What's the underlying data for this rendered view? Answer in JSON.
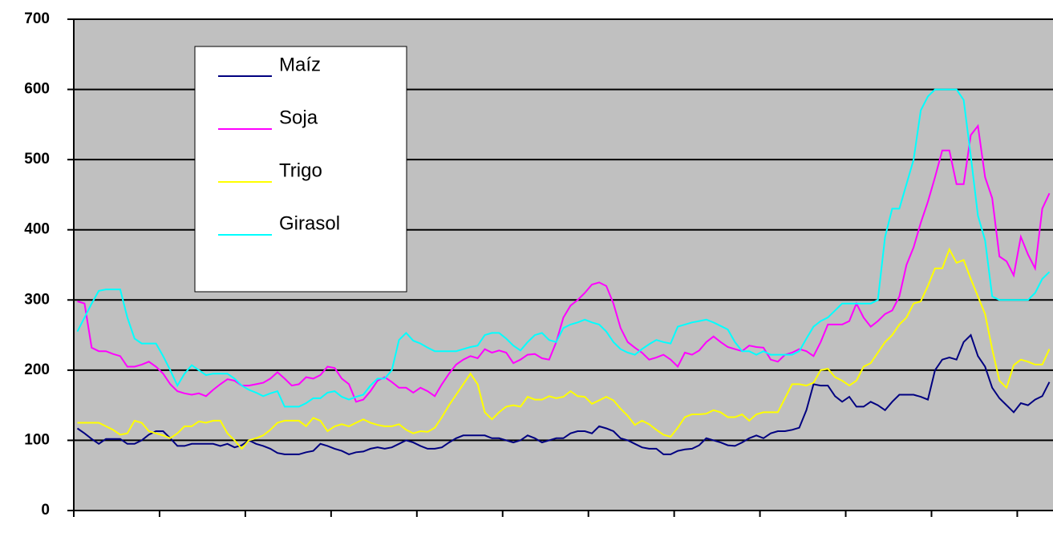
{
  "chart_data": {
    "type": "line",
    "categories": [
      null,
      null,
      null,
      null,
      null,
      null,
      null,
      null,
      null,
      null,
      null,
      null,
      null,
      null,
      null,
      null,
      null,
      null,
      null,
      null,
      null,
      null,
      null,
      null,
      null,
      null,
      null,
      null,
      null,
      null,
      null,
      null,
      null,
      null,
      null,
      null,
      null,
      null,
      null,
      null,
      null,
      null,
      null,
      null,
      null,
      null,
      null,
      null,
      null,
      null,
      null,
      null,
      null,
      null,
      null,
      null,
      null,
      null,
      null,
      null,
      null,
      null,
      null,
      null,
      null,
      null,
      null,
      null,
      null,
      null,
      null,
      null,
      null,
      null,
      null,
      null,
      null,
      null,
      null,
      null,
      null,
      null,
      null,
      null,
      null,
      null,
      null,
      null,
      null,
      null,
      null,
      null,
      null,
      null,
      null,
      null,
      null,
      null,
      null,
      null,
      null,
      null,
      null,
      null,
      null,
      null,
      null,
      null,
      null,
      null,
      null,
      null,
      null,
      null,
      null,
      null,
      null,
      null,
      null,
      null,
      null,
      null,
      null,
      null,
      null,
      null,
      null,
      null,
      null,
      null,
      null,
      null,
      null,
      null,
      null,
      null,
      null
    ],
    "series": [
      {
        "name": "Maíz",
        "color": "#000080",
        "values": [
          117,
          110,
          102,
          95,
          102,
          102,
          102,
          95,
          95,
          100,
          108,
          113,
          113,
          103,
          92,
          92,
          95,
          95,
          95,
          95,
          92,
          95,
          90,
          93,
          100,
          95,
          92,
          88,
          82,
          80,
          80,
          80,
          83,
          85,
          95,
          92,
          88,
          85,
          80,
          83,
          84,
          88,
          90,
          88,
          90,
          95,
          100,
          97,
          92,
          88,
          88,
          90,
          97,
          103,
          107,
          107,
          107,
          107,
          103,
          103,
          100,
          97,
          100,
          107,
          103,
          97,
          100,
          103,
          103,
          110,
          113,
          113,
          110,
          120,
          117,
          113,
          103,
          100,
          95,
          90,
          88,
          88,
          80,
          80,
          85,
          87,
          88,
          93,
          103,
          100,
          97,
          93,
          92,
          97,
          103,
          107,
          103,
          110,
          113,
          113,
          115,
          118,
          143,
          180,
          178,
          178,
          163,
          155,
          162,
          148,
          148,
          155,
          150,
          143,
          155,
          165,
          165,
          165,
          162,
          158,
          200,
          215,
          218,
          215,
          240,
          250,
          220,
          205,
          175,
          160,
          150,
          140,
          153,
          150,
          158,
          163,
          183
        ]
      },
      {
        "name": "Soja",
        "color": "#ff00ff",
        "values": [
          298,
          295,
          232,
          227,
          227,
          223,
          220,
          205,
          205,
          208,
          212,
          205,
          195,
          180,
          170,
          167,
          165,
          167,
          163,
          172,
          180,
          187,
          185,
          178,
          178,
          180,
          182,
          188,
          197,
          188,
          178,
          180,
          190,
          188,
          193,
          205,
          203,
          188,
          180,
          155,
          158,
          170,
          185,
          190,
          183,
          175,
          175,
          168,
          175,
          170,
          163,
          180,
          195,
          208,
          215,
          220,
          217,
          230,
          225,
          228,
          225,
          210,
          215,
          222,
          223,
          217,
          215,
          240,
          275,
          292,
          300,
          310,
          322,
          325,
          320,
          295,
          260,
          240,
          232,
          225,
          215,
          218,
          222,
          215,
          205,
          225,
          222,
          228,
          240,
          248,
          240,
          233,
          230,
          227,
          235,
          233,
          232,
          215,
          212,
          222,
          225,
          230,
          227,
          220,
          240,
          265,
          265,
          265,
          270,
          295,
          275,
          262,
          270,
          280,
          285,
          305,
          350,
          375,
          410,
          440,
          475,
          513,
          513,
          465,
          465,
          535,
          548,
          475,
          445,
          362,
          355,
          335,
          390,
          365,
          345,
          430,
          452
        ]
      },
      {
        "name": "Trigo",
        "color": "#ffff00",
        "values": [
          125,
          125,
          125,
          125,
          120,
          115,
          108,
          110,
          128,
          125,
          113,
          110,
          107,
          103,
          110,
          120,
          120,
          127,
          125,
          128,
          128,
          110,
          100,
          88,
          100,
          103,
          107,
          115,
          125,
          128,
          128,
          128,
          120,
          132,
          128,
          113,
          120,
          123,
          120,
          125,
          130,
          125,
          122,
          120,
          120,
          123,
          115,
          110,
          113,
          112,
          118,
          133,
          150,
          165,
          180,
          195,
          180,
          140,
          130,
          140,
          148,
          150,
          148,
          162,
          158,
          158,
          163,
          160,
          162,
          170,
          163,
          162,
          152,
          157,
          162,
          157,
          145,
          135,
          122,
          128,
          123,
          115,
          108,
          105,
          118,
          133,
          137,
          137,
          138,
          143,
          140,
          133,
          133,
          137,
          128,
          137,
          140,
          140,
          140,
          160,
          180,
          180,
          178,
          182,
          200,
          202,
          190,
          185,
          178,
          185,
          205,
          210,
          225,
          240,
          250,
          265,
          275,
          295,
          298,
          320,
          345,
          345,
          372,
          353,
          357,
          330,
          305,
          280,
          230,
          185,
          175,
          207,
          215,
          212,
          208,
          208,
          230
        ]
      },
      {
        "name": "Girasol",
        "color": "#00ffff",
        "values": [
          255,
          275,
          295,
          313,
          315,
          315,
          315,
          275,
          245,
          238,
          238,
          238,
          220,
          200,
          178,
          195,
          207,
          200,
          193,
          195,
          195,
          195,
          188,
          178,
          172,
          168,
          163,
          167,
          170,
          148,
          148,
          148,
          153,
          160,
          160,
          168,
          170,
          162,
          158,
          162,
          165,
          178,
          188,
          188,
          200,
          243,
          253,
          242,
          238,
          232,
          227,
          227,
          227,
          227,
          230,
          233,
          235,
          250,
          253,
          253,
          245,
          235,
          228,
          240,
          250,
          253,
          243,
          240,
          260,
          265,
          268,
          272,
          268,
          265,
          255,
          240,
          230,
          225,
          222,
          230,
          237,
          243,
          240,
          238,
          262,
          265,
          268,
          270,
          272,
          268,
          263,
          258,
          240,
          227,
          227,
          222,
          227,
          222,
          222,
          222,
          222,
          227,
          245,
          262,
          270,
          275,
          285,
          295,
          295,
          295,
          295,
          295,
          300,
          390,
          430,
          430,
          465,
          500,
          570,
          590,
          600,
          600,
          600,
          600,
          585,
          505,
          420,
          385,
          305,
          300,
          300,
          300,
          300,
          300,
          310,
          330,
          340
        ]
      }
    ],
    "ylim": [
      0,
      700
    ],
    "yticks": [
      0,
      100,
      200,
      300,
      400,
      500,
      600,
      700
    ],
    "grid": true,
    "legend": "upper left"
  }
}
